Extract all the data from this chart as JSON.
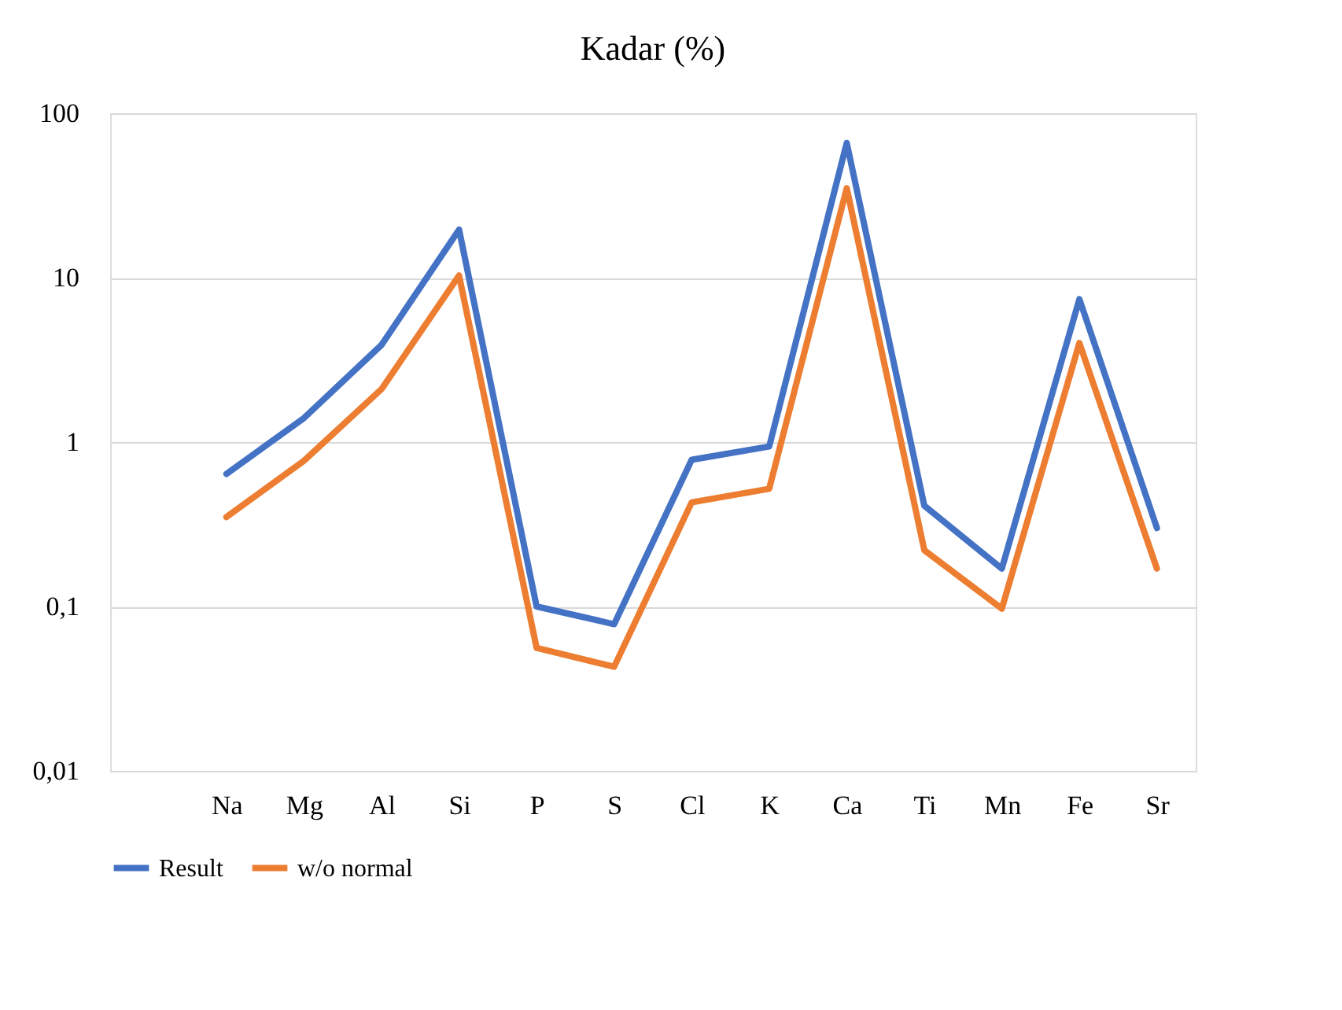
{
  "chart_data": {
    "type": "line",
    "title": "Kadar (%)",
    "categories": [
      null,
      "Na",
      "Mg",
      "Al",
      "Si",
      "P",
      "S",
      "Cl",
      "K",
      "Ca",
      "Ti",
      "Mn",
      "Fe",
      "Sr"
    ],
    "series": [
      {
        "name": "Result",
        "color": "#4472c4",
        "values": [
          null,
          0.64,
          1.4,
          3.9,
          19.6,
          0.1,
          0.078,
          0.78,
          0.94,
          66,
          0.41,
          0.17,
          7.4,
          0.3
        ]
      },
      {
        "name": "w/o normal",
        "color": "#ed7d31",
        "values": [
          null,
          0.35,
          0.77,
          2.1,
          10.3,
          0.056,
          0.043,
          0.43,
          0.52,
          35,
          0.22,
          0.097,
          4.0,
          0.17
        ]
      }
    ],
    "log": "y",
    "ylim": [
      0.01,
      100
    ],
    "yticks": [
      {
        "value": 0.01,
        "label": "0,01"
      },
      {
        "value": 0.1,
        "label": "0,1"
      },
      1,
      10,
      100
    ],
    "grid": "y",
    "legend": "bottom",
    "marker": "none",
    "line_style": "solid"
  }
}
